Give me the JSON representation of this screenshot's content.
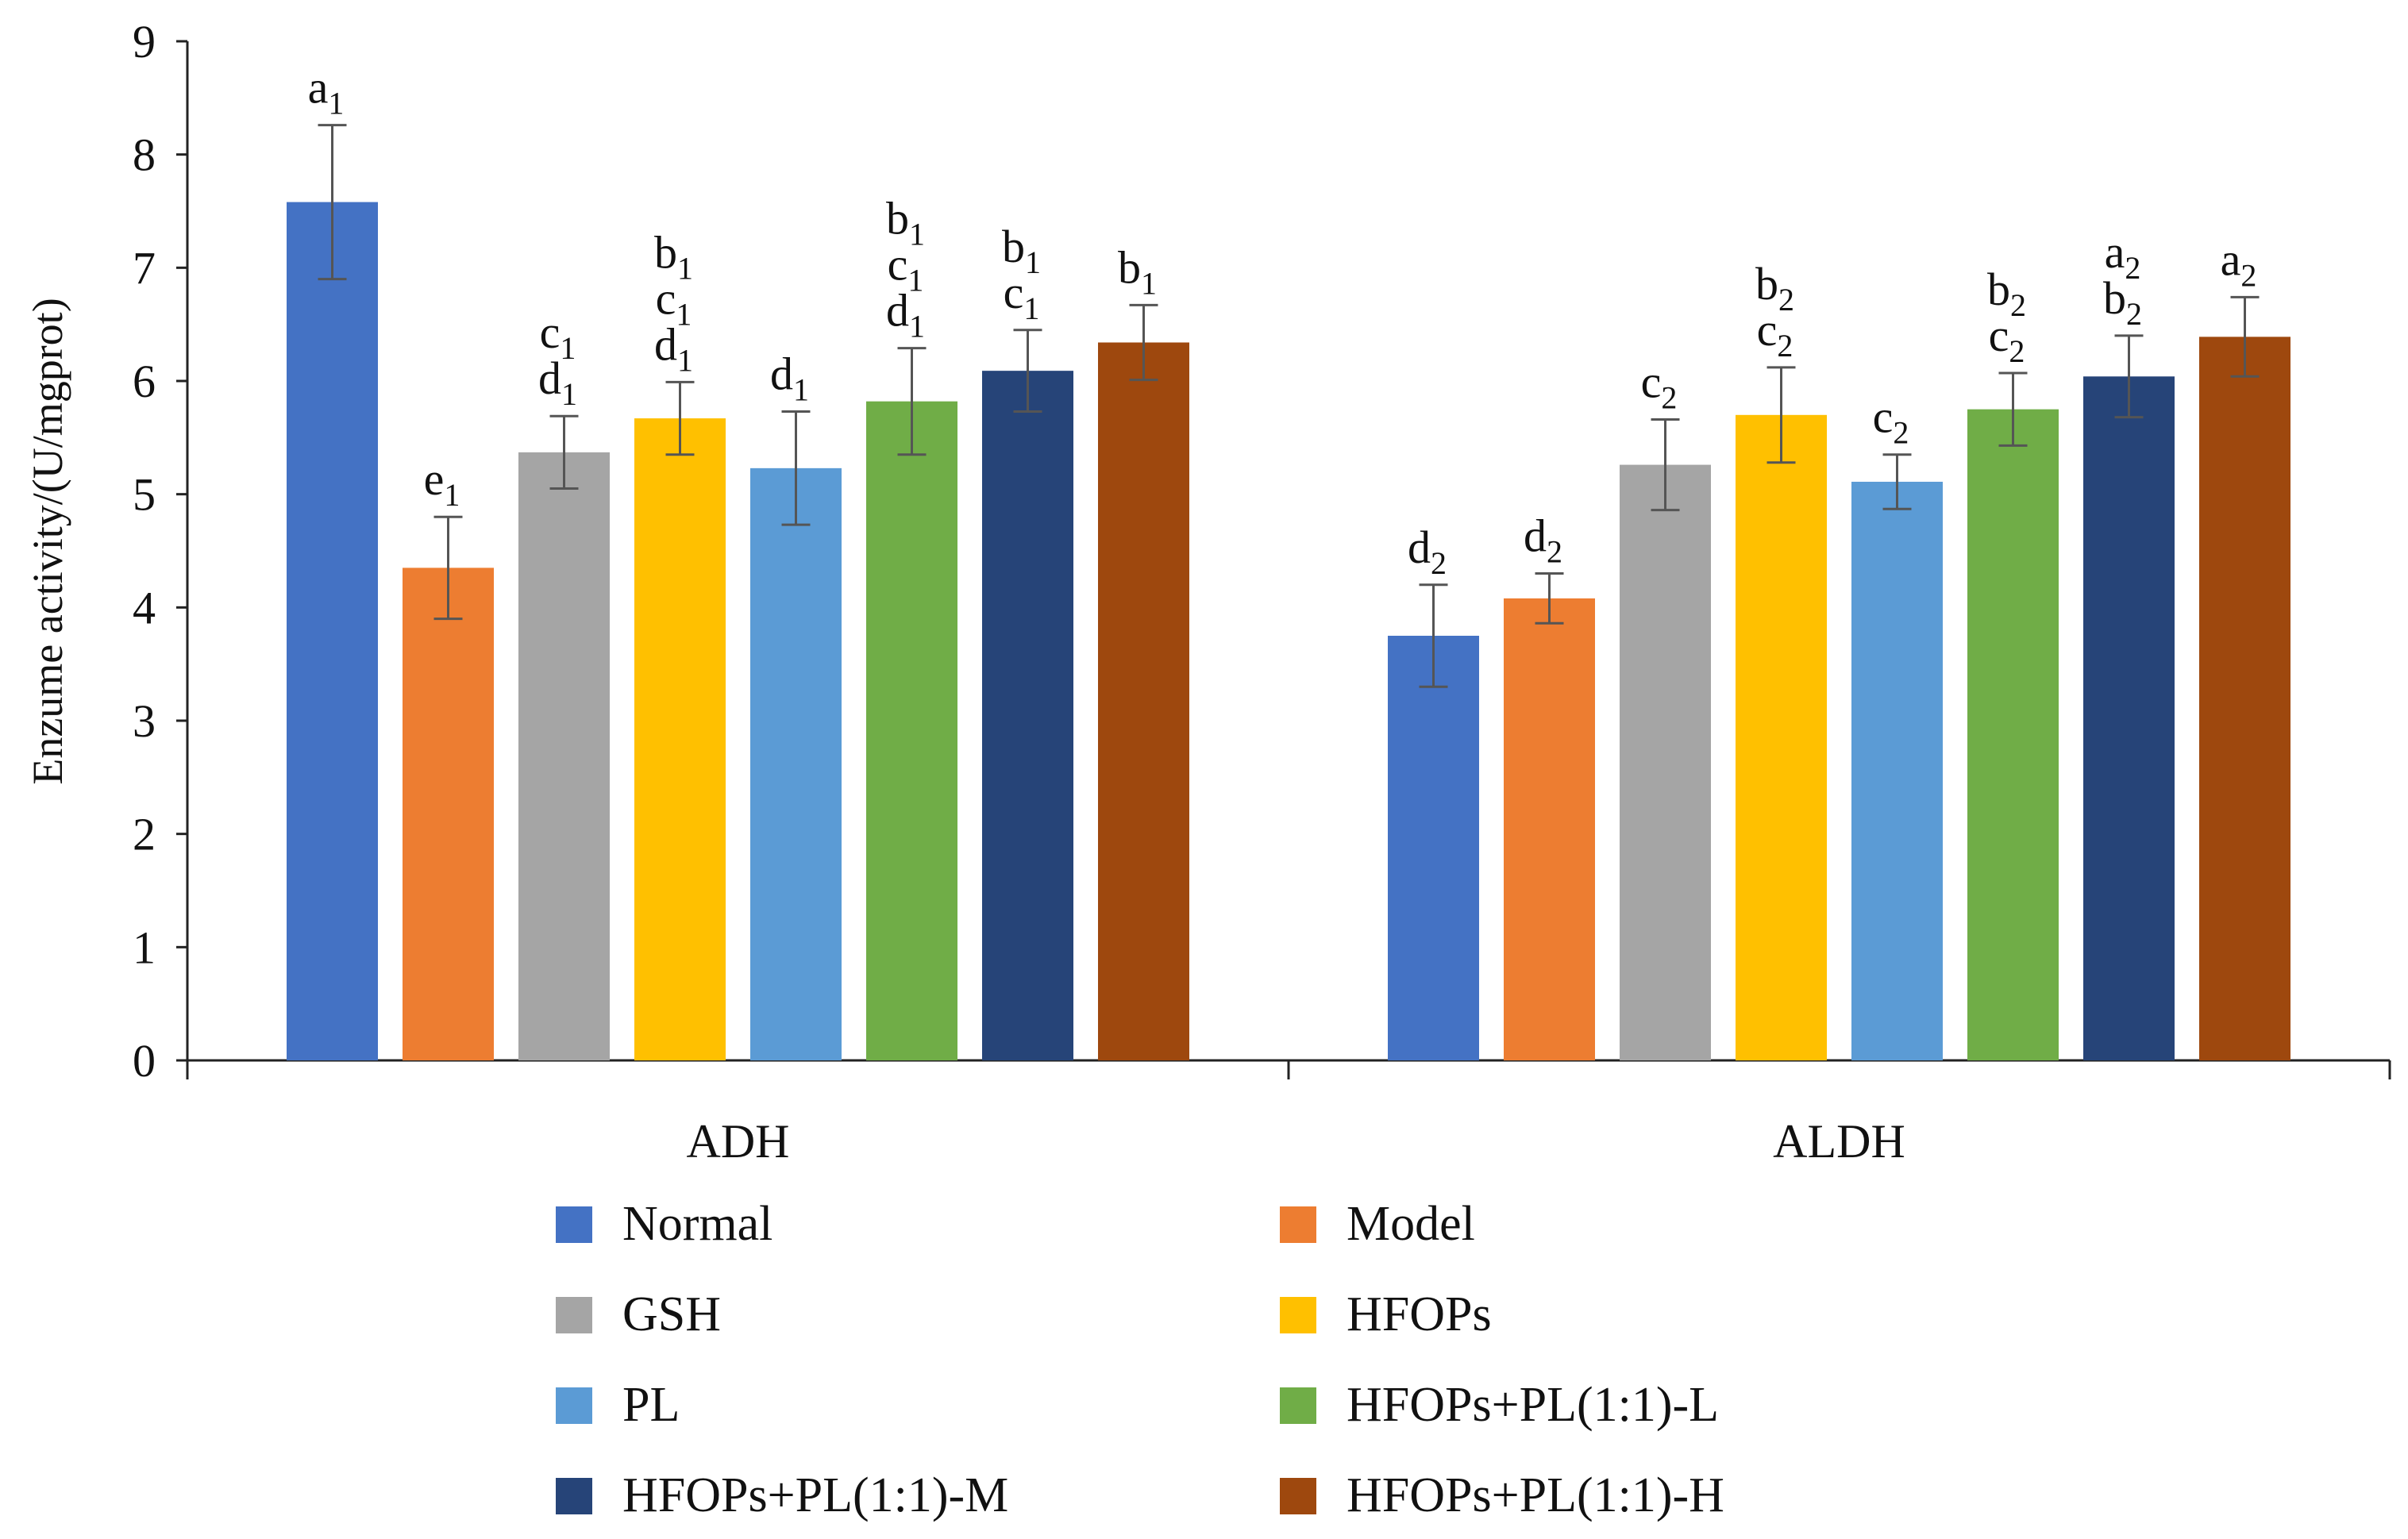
{
  "chart_data": {
    "type": "bar",
    "ylabel": "Enzume activity/(U/mgprot)",
    "ylim": [
      0,
      9
    ],
    "yticks": [
      "0",
      "1",
      "2",
      "3",
      "4",
      "5",
      "6",
      "7",
      "8",
      "9"
    ],
    "grid": false,
    "legend_position": "bottom",
    "categories": [
      "ADH",
      "ALDH"
    ],
    "series": [
      {
        "name": "Normal",
        "color": "#4472C4",
        "values": [
          7.58,
          3.75
        ],
        "errors": [
          0.68,
          0.45
        ],
        "sig": [
          [
            {
              "l": "a",
              "s": "1"
            }
          ],
          [
            {
              "l": "d",
              "s": "2"
            }
          ]
        ]
      },
      {
        "name": "Model",
        "color": "#ED7D31",
        "values": [
          4.35,
          4.08
        ],
        "errors": [
          0.45,
          0.22
        ],
        "sig": [
          [
            {
              "l": "e",
              "s": "1"
            }
          ],
          [
            {
              "l": "d",
              "s": "2"
            }
          ]
        ]
      },
      {
        "name": "GSH",
        "color": "#A5A5A5",
        "values": [
          5.37,
          5.26
        ],
        "errors": [
          0.32,
          0.4
        ],
        "sig": [
          [
            {
              "l": "c",
              "s": "1"
            },
            {
              "l": "d",
              "s": "1"
            }
          ],
          [
            {
              "l": "c",
              "s": "2"
            }
          ]
        ]
      },
      {
        "name": "HFOPs",
        "color": "#FFC000",
        "values": [
          5.67,
          5.7
        ],
        "errors": [
          0.32,
          0.42
        ],
        "sig": [
          [
            {
              "l": "b",
              "s": "1"
            },
            {
              "l": "c",
              "s": "1"
            },
            {
              "l": "d",
              "s": "1"
            }
          ],
          [
            {
              "l": "b",
              "s": "2"
            },
            {
              "l": "c",
              "s": "2"
            }
          ]
        ]
      },
      {
        "name": "PL",
        "color": "#5B9BD5",
        "values": [
          5.23,
          5.11
        ],
        "errors": [
          0.5,
          0.24
        ],
        "sig": [
          [
            {
              "l": "d",
              "s": "1"
            }
          ],
          [
            {
              "l": "c",
              "s": "2"
            }
          ]
        ]
      },
      {
        "name": "HFOPs+PL(1:1)-L",
        "color": "#70AD47",
        "values": [
          5.82,
          5.75
        ],
        "errors": [
          0.47,
          0.32
        ],
        "sig": [
          [
            {
              "l": "b",
              "s": "1"
            },
            {
              "l": "c",
              "s": "1"
            },
            {
              "l": "d",
              "s": "1"
            }
          ],
          [
            {
              "l": "b",
              "s": "2"
            },
            {
              "l": "c",
              "s": "2"
            }
          ]
        ]
      },
      {
        "name": "HFOPs+PL(1:1)-M",
        "color": "#264478",
        "values": [
          6.09,
          6.04
        ],
        "errors": [
          0.36,
          0.36
        ],
        "sig": [
          [
            {
              "l": "b",
              "s": "1"
            },
            {
              "l": "c",
              "s": "1"
            }
          ],
          [
            {
              "l": "a",
              "s": "2"
            },
            {
              "l": "b",
              "s": "2"
            }
          ]
        ]
      },
      {
        "name": "HFOPs+PL(1:1)-H",
        "color": "#9E480E",
        "values": [
          6.34,
          6.39
        ],
        "errors": [
          0.33,
          0.35
        ],
        "sig": [
          [
            {
              "l": "b",
              "s": "1"
            }
          ],
          [
            {
              "l": "a",
              "s": "2"
            }
          ]
        ]
      }
    ]
  }
}
